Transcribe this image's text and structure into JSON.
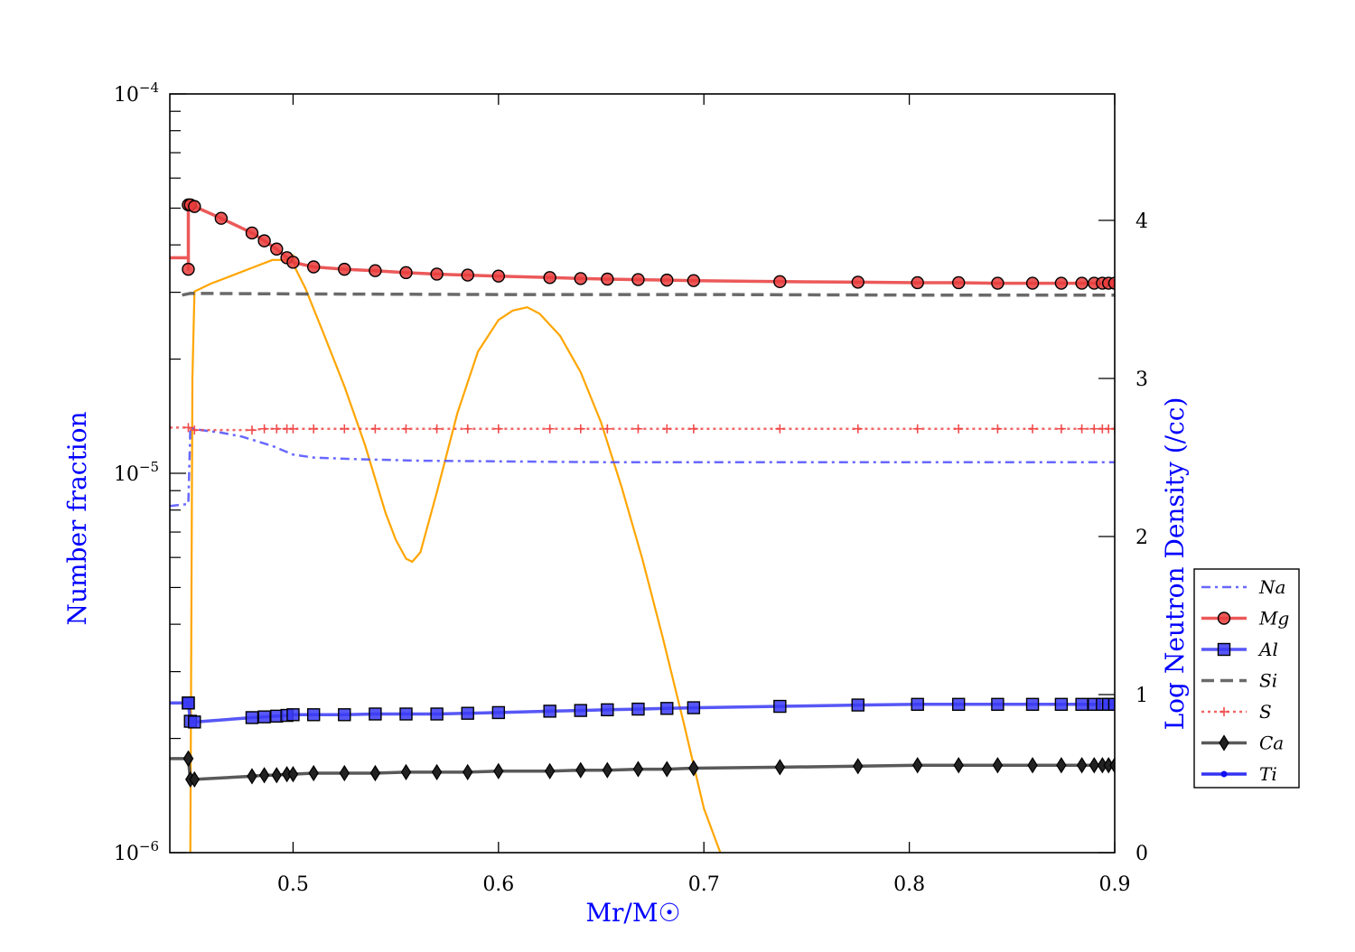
{
  "chart_data": {
    "type": "line",
    "xlabel": "Mr/M☉",
    "ylabel_left": "Number fraction",
    "ylabel_right": "Log Neutron Density (/cc)",
    "label_color": "#0000ff",
    "xlim": [
      0.44,
      0.9
    ],
    "ylim_left": [
      1e-06,
      0.0001
    ],
    "ylim_right": [
      0,
      4.8
    ],
    "left_scale": "log",
    "x_ticks": [
      {
        "value": 0.5,
        "label": "0.5"
      },
      {
        "value": 0.6,
        "label": "0.6"
      },
      {
        "value": 0.7,
        "label": "0.7"
      },
      {
        "value": 0.8,
        "label": "0.8"
      },
      {
        "value": 0.9,
        "label": "0.9"
      }
    ],
    "y_left_ticks": [
      {
        "value": 1e-06,
        "base": "10",
        "exp": "−6"
      },
      {
        "value": 1e-05,
        "base": "10",
        "exp": "−5"
      },
      {
        "value": 0.0001,
        "base": "10",
        "exp": "−4"
      }
    ],
    "y_right_ticks": [
      {
        "value": 0,
        "label": "0"
      },
      {
        "value": 1,
        "label": "1"
      },
      {
        "value": 2,
        "label": "2"
      },
      {
        "value": 3,
        "label": "3"
      },
      {
        "value": 4,
        "label": "4"
      }
    ],
    "grid": false,
    "legend_position": "right",
    "series": [
      {
        "name": "Na",
        "color": "#4d4dff",
        "dash": "10,5,3,5",
        "marker": "none",
        "linewidth": 2.5,
        "x": [
          0.44,
          0.449,
          0.45,
          0.455,
          0.465,
          0.475,
          0.49,
          0.5,
          0.51,
          0.53,
          0.56,
          0.6,
          0.65,
          0.7,
          0.75,
          0.8,
          0.85,
          0.9
        ],
        "y": [
          8.2e-06,
          8.3e-06,
          1.32e-05,
          1.3e-05,
          1.28e-05,
          1.25e-05,
          1.18e-05,
          1.12e-05,
          1.1e-05,
          1.09e-05,
          1.08e-05,
          1.075e-05,
          1.07e-05,
          1.07e-05,
          1.07e-05,
          1.07e-05,
          1.07e-05,
          1.07e-05
        ]
      },
      {
        "name": "Mg",
        "color": "#e93c3c",
        "dash": "",
        "marker": "circle",
        "linewidth": 3.5,
        "x": [
          0.44,
          0.449,
          0.449,
          0.449,
          0.45,
          0.452,
          0.465,
          0.48,
          0.486,
          0.492,
          0.497,
          0.5,
          0.51,
          0.525,
          0.54,
          0.555,
          0.57,
          0.585,
          0.6,
          0.625,
          0.64,
          0.653,
          0.668,
          0.682,
          0.695,
          0.737,
          0.775,
          0.804,
          0.824,
          0.843,
          0.86,
          0.874,
          0.884,
          0.89,
          0.894,
          0.897,
          0.9
        ],
        "y": [
          3.7e-05,
          3.7e-05,
          3.45e-05,
          5.1e-05,
          5.1e-05,
          5.05e-05,
          4.7e-05,
          4.3e-05,
          4.1e-05,
          3.9e-05,
          3.7e-05,
          3.6e-05,
          3.5e-05,
          3.45e-05,
          3.42e-05,
          3.38e-05,
          3.35e-05,
          3.33e-05,
          3.31e-05,
          3.28e-05,
          3.26e-05,
          3.25e-05,
          3.24e-05,
          3.23e-05,
          3.22e-05,
          3.2e-05,
          3.19e-05,
          3.18e-05,
          3.18e-05,
          3.17e-05,
          3.17e-05,
          3.17e-05,
          3.17e-05,
          3.17e-05,
          3.17e-05,
          3.17e-05,
          3.17e-05
        ],
        "markers_from": 2
      },
      {
        "name": "Al",
        "color": "#3939f5",
        "dash": "",
        "marker": "square",
        "linewidth": 3.5,
        "x": [
          0.44,
          0.449,
          0.449,
          0.45,
          0.452,
          0.48,
          0.486,
          0.492,
          0.497,
          0.5,
          0.51,
          0.525,
          0.54,
          0.555,
          0.57,
          0.585,
          0.6,
          0.625,
          0.64,
          0.653,
          0.668,
          0.682,
          0.695,
          0.737,
          0.775,
          0.804,
          0.824,
          0.843,
          0.86,
          0.874,
          0.884,
          0.89,
          0.894,
          0.897,
          0.9
        ],
        "y": [
          2.48e-06,
          2.48e-06,
          2.48e-06,
          2.22e-06,
          2.21e-06,
          2.27e-06,
          2.28e-06,
          2.29e-06,
          2.3e-06,
          2.31e-06,
          2.31e-06,
          2.31e-06,
          2.32e-06,
          2.32e-06,
          2.32e-06,
          2.33e-06,
          2.34e-06,
          2.36e-06,
          2.37e-06,
          2.38e-06,
          2.39e-06,
          2.4e-06,
          2.41e-06,
          2.43e-06,
          2.45e-06,
          2.46e-06,
          2.46e-06,
          2.46e-06,
          2.46e-06,
          2.46e-06,
          2.46e-06,
          2.46e-06,
          2.46e-06,
          2.46e-06,
          2.46e-06
        ],
        "markers_from": 1
      },
      {
        "name": "Si",
        "color": "#505050",
        "dash": "14,7",
        "marker": "none",
        "linewidth": 3.5,
        "x": [
          0.446,
          0.45,
          0.5,
          0.6,
          0.7,
          0.8,
          0.9
        ],
        "y": [
          2.95e-05,
          2.98e-05,
          2.97e-05,
          2.96e-05,
          2.96e-05,
          2.95e-05,
          2.95e-05
        ]
      },
      {
        "name": "S",
        "color": "#f04b4b",
        "dash": "3,4",
        "marker": "plus",
        "linewidth": 2.5,
        "x": [
          0.44,
          0.449,
          0.452,
          0.48,
          0.486,
          0.492,
          0.497,
          0.5,
          0.51,
          0.525,
          0.54,
          0.555,
          0.57,
          0.585,
          0.6,
          0.625,
          0.64,
          0.653,
          0.668,
          0.682,
          0.695,
          0.737,
          0.775,
          0.804,
          0.824,
          0.843,
          0.86,
          0.874,
          0.884,
          0.89,
          0.894,
          0.897,
          0.9
        ],
        "y": [
          1.32e-05,
          1.32e-05,
          1.3e-05,
          1.3e-05,
          1.31e-05,
          1.31e-05,
          1.31e-05,
          1.31e-05,
          1.31e-05,
          1.31e-05,
          1.31e-05,
          1.31e-05,
          1.31e-05,
          1.31e-05,
          1.31e-05,
          1.31e-05,
          1.31e-05,
          1.31e-05,
          1.31e-05,
          1.31e-05,
          1.31e-05,
          1.31e-05,
          1.31e-05,
          1.31e-05,
          1.31e-05,
          1.31e-05,
          1.31e-05,
          1.31e-05,
          1.31e-05,
          1.31e-05,
          1.31e-05,
          1.31e-05,
          1.31e-05
        ],
        "markers_from": 1
      },
      {
        "name": "Ca",
        "color": "#3c3c3c",
        "dash": "",
        "marker": "diamond",
        "linewidth": 3.5,
        "x": [
          0.44,
          0.449,
          0.449,
          0.45,
          0.452,
          0.48,
          0.486,
          0.492,
          0.497,
          0.5,
          0.51,
          0.525,
          0.54,
          0.555,
          0.57,
          0.585,
          0.6,
          0.625,
          0.64,
          0.653,
          0.668,
          0.682,
          0.695,
          0.737,
          0.775,
          0.804,
          0.824,
          0.843,
          0.86,
          0.874,
          0.884,
          0.89,
          0.894,
          0.897,
          0.9
        ],
        "y": [
          1.77e-06,
          1.77e-06,
          1.77e-06,
          1.56e-06,
          1.56e-06,
          1.59e-06,
          1.6e-06,
          1.6e-06,
          1.61e-06,
          1.61e-06,
          1.62e-06,
          1.62e-06,
          1.62e-06,
          1.63e-06,
          1.63e-06,
          1.63e-06,
          1.64e-06,
          1.64e-06,
          1.65e-06,
          1.65e-06,
          1.66e-06,
          1.66e-06,
          1.67e-06,
          1.68e-06,
          1.69e-06,
          1.7e-06,
          1.7e-06,
          1.7e-06,
          1.7e-06,
          1.7e-06,
          1.7e-06,
          1.7e-06,
          1.7e-06,
          1.7e-06,
          1.7e-06
        ],
        "markers_from": 1
      },
      {
        "name": "Ti",
        "color": "#1010f0",
        "dash": "",
        "marker": "dot",
        "linewidth": 3.5,
        "x": [],
        "y": []
      }
    ],
    "neutron_density": {
      "color": "#ffa500",
      "axis": "right",
      "x": [
        0.45,
        0.451,
        0.452,
        0.46,
        0.47,
        0.48,
        0.49,
        0.498,
        0.5,
        0.501,
        0.506,
        0.515,
        0.525,
        0.535,
        0.545,
        0.55,
        0.555,
        0.558,
        0.562,
        0.57,
        0.58,
        0.59,
        0.6,
        0.607,
        0.614,
        0.62,
        0.63,
        0.64,
        0.65,
        0.66,
        0.67,
        0.68,
        0.69,
        0.7,
        0.708
      ],
      "y": [
        0,
        3.0,
        3.55,
        3.6,
        3.65,
        3.7,
        3.75,
        3.75,
        3.78,
        3.7,
        3.57,
        3.28,
        2.95,
        2.58,
        2.15,
        1.98,
        1.86,
        1.84,
        1.9,
        2.28,
        2.78,
        3.17,
        3.37,
        3.43,
        3.45,
        3.41,
        3.27,
        3.04,
        2.72,
        2.31,
        1.86,
        1.36,
        0.83,
        0.28,
        0
      ]
    }
  }
}
